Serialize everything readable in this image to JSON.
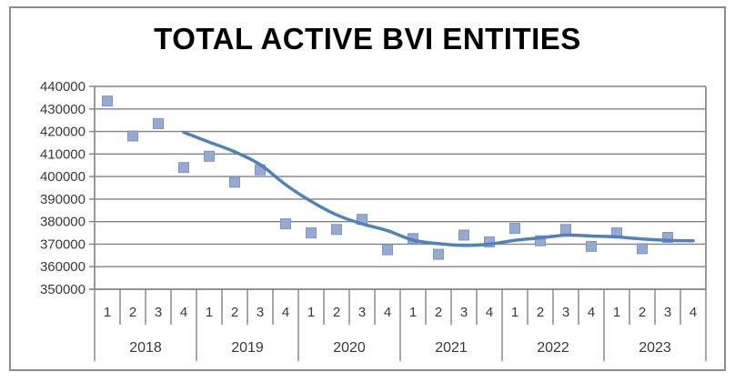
{
  "colors": {
    "marker_fill": "#95A9D2",
    "marker_border": "#7D94C4",
    "trend_line": "#4F81BD",
    "grid": "#828282",
    "frame": "#8C8C8C",
    "tick_text": "#3A3A3A",
    "title_text": "#000000",
    "background": "#FFFFFF"
  },
  "chart_data": {
    "type": "scatter",
    "title": "TOTAL ACTIVE BVI ENTITIES",
    "xlabel": "",
    "ylabel": "",
    "years": [
      "2018",
      "2019",
      "2020",
      "2021",
      "2022",
      "2023"
    ],
    "quarters_per_year": [
      "1",
      "2",
      "3",
      "4"
    ],
    "y_ticks": [
      440000,
      430000,
      420000,
      410000,
      400000,
      390000,
      380000,
      370000,
      360000,
      350000
    ],
    "ylim": [
      350000,
      440000
    ],
    "grid": true,
    "legend": false,
    "series": [
      {
        "name": "total-active-bvi-entities-quarterly",
        "type": "scatter",
        "marker": "square",
        "values": [
          433500,
          418000,
          423500,
          404000,
          409000,
          397500,
          403000,
          379000,
          375000,
          376500,
          381000,
          367500,
          372500,
          365500,
          374000,
          371000,
          377000,
          371500,
          376500,
          369000,
          375000,
          368000,
          373000,
          null
        ]
      },
      {
        "name": "trend-line",
        "type": "line",
        "start_index": 3,
        "values": [
          419600,
          415300,
          411000,
          405300,
          396400,
          389000,
          383000,
          379000,
          376000,
          371800,
          370200,
          369400,
          370000,
          371700,
          372800,
          374000,
          373600,
          373200,
          372300,
          371700,
          371500
        ]
      }
    ]
  }
}
